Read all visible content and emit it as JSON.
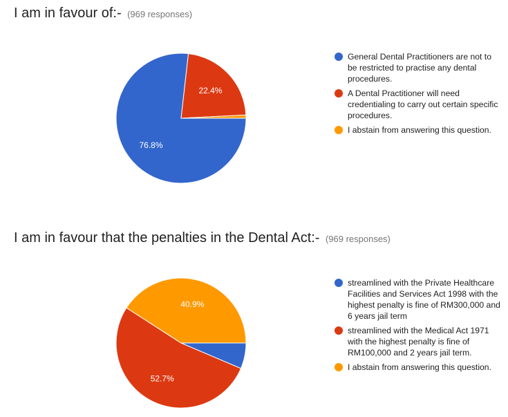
{
  "chart_data": [
    {
      "type": "pie",
      "title": "I am in favour of:-",
      "subtitle": "(969 responses)",
      "legend_position": "right",
      "series": [
        {
          "name": "General Dental Practitioners are not to be restricted to practise any dental procedures.",
          "value": 76.8,
          "label": "76.8%",
          "color": "#3366cc"
        },
        {
          "name": "A Dental Practitioner will need credentialing to carry out certain specific procedures.",
          "value": 22.4,
          "label": "22.4%",
          "color": "#dc3912"
        },
        {
          "name": "I abstain from answering this question.",
          "value": 0.8,
          "label": "",
          "color": "#ff9900"
        }
      ]
    },
    {
      "type": "pie",
      "title": "I am in favour that the penalties in the Dental Act:-",
      "subtitle": "(969 responses)",
      "legend_position": "right",
      "series": [
        {
          "name": "streamlined with the Private Healthcare Facilities and Services Act 1998 with the highest penalty is fine of RM300,000 and 6 years jail term",
          "value": 6.4,
          "label": "",
          "color": "#3366cc"
        },
        {
          "name": "streamlined with the Medical Act 1971 with the highest penalty is fine of RM100,000 and 2 years jail term.",
          "value": 52.7,
          "label": "52.7%",
          "color": "#dc3912"
        },
        {
          "name": "I abstain from answering this question.",
          "value": 40.9,
          "label": "40.9%",
          "color": "#ff9900"
        }
      ]
    }
  ]
}
